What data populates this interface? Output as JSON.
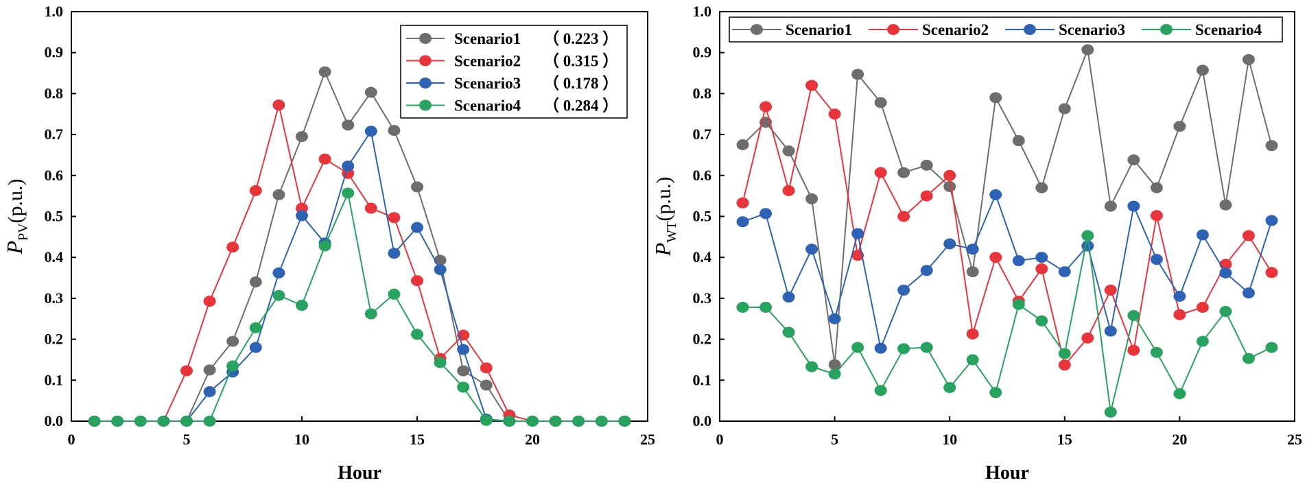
{
  "colors": {
    "s1": "#6d6d6d",
    "s2": "#e8343b",
    "s3": "#2e62b4",
    "s4": "#27a25f",
    "axis": "#000000",
    "legend_border": "#000000"
  },
  "chart_data": [
    {
      "type": "line",
      "xlabel": "Hour",
      "ylabel": {
        "main": "P",
        "sub": "PV",
        "unit": "(p.u.)"
      },
      "xlim": [
        0,
        25
      ],
      "ylim": [
        0,
        1.0
      ],
      "xticks": [
        0,
        5,
        10,
        15,
        20,
        25
      ],
      "xtick_labels": [
        "0",
        "5",
        "10",
        "15",
        "20",
        "25"
      ],
      "yticks": [
        0,
        0.1,
        0.2,
        0.3,
        0.4,
        0.5,
        0.6,
        0.7,
        0.8,
        0.9,
        1.0
      ],
      "ytick_labels": [
        "0.0",
        "0.1",
        "0.2",
        "0.3",
        "0.4",
        "0.5",
        "0.6",
        "0.7",
        "0.8",
        "0.9",
        "1.0"
      ],
      "legend_position": "top-right",
      "legend_layout": "vertical",
      "x": [
        1,
        2,
        3,
        4,
        5,
        6,
        7,
        8,
        9,
        10,
        11,
        12,
        13,
        14,
        15,
        16,
        17,
        18,
        19,
        20,
        21,
        22,
        23,
        24
      ],
      "series": [
        {
          "name": "Scenario1",
          "prob": "（ 0.223 ）",
          "color_key": "s1",
          "values": [
            0,
            0,
            0,
            0,
            0,
            0.125,
            0.195,
            0.34,
            0.553,
            0.695,
            0.853,
            0.723,
            0.803,
            0.71,
            0.572,
            0.393,
            0.123,
            0.088,
            0,
            0,
            0,
            0,
            0,
            0
          ]
        },
        {
          "name": "Scenario2",
          "prob": "（ 0.315 ）",
          "color_key": "s2",
          "values": [
            0,
            0,
            0,
            0,
            0.123,
            0.293,
            0.425,
            0.563,
            0.772,
            0.52,
            0.64,
            0.605,
            0.52,
            0.497,
            0.343,
            0.153,
            0.21,
            0.13,
            0.015,
            0,
            0,
            0,
            0,
            0
          ]
        },
        {
          "name": "Scenario3",
          "prob": "（ 0.178 ）",
          "color_key": "s3",
          "values": [
            0,
            0,
            0,
            0,
            0,
            0.072,
            0.12,
            0.18,
            0.362,
            0.502,
            0.435,
            0.623,
            0.708,
            0.41,
            0.473,
            0.37,
            0.175,
            0.005,
            0,
            0,
            0,
            0,
            0,
            0
          ]
        },
        {
          "name": "Scenario4",
          "prob": "（ 0.284 ）",
          "color_key": "s4",
          "values": [
            0,
            0,
            0,
            0,
            0,
            0,
            0.135,
            0.228,
            0.307,
            0.283,
            0.428,
            0.557,
            0.262,
            0.31,
            0.212,
            0.143,
            0.083,
            0.002,
            0,
            0,
            0,
            0,
            0,
            0
          ]
        }
      ]
    },
    {
      "type": "line",
      "xlabel": "Hour",
      "ylabel": {
        "main": "P",
        "sub": "WT",
        "unit": "(p.u.)"
      },
      "xlim": [
        0,
        25
      ],
      "ylim": [
        0,
        1.0
      ],
      "xticks": [
        0,
        5,
        10,
        15,
        20,
        25
      ],
      "xtick_labels": [
        "0",
        "5",
        "10",
        "15",
        "20",
        "25"
      ],
      "yticks": [
        0,
        0.1,
        0.2,
        0.3,
        0.4,
        0.5,
        0.6,
        0.7,
        0.8,
        0.9,
        1.0
      ],
      "ytick_labels": [
        "0.0",
        "0.1",
        "0.2",
        "0.3",
        "0.4",
        "0.5",
        "0.6",
        "0.7",
        "0.8",
        "0.9",
        "1.0"
      ],
      "legend_position": "top",
      "legend_layout": "horizontal",
      "x": [
        1,
        2,
        3,
        4,
        5,
        6,
        7,
        8,
        9,
        10,
        11,
        12,
        13,
        14,
        15,
        16,
        17,
        18,
        19,
        20,
        21,
        22,
        23,
        24
      ],
      "series": [
        {
          "name": "Scenario1",
          "color_key": "s1",
          "values": [
            0.675,
            0.73,
            0.66,
            0.543,
            0.138,
            0.847,
            0.778,
            0.607,
            0.625,
            0.573,
            0.365,
            0.79,
            0.685,
            0.57,
            0.763,
            0.907,
            0.525,
            0.638,
            0.57,
            0.72,
            0.857,
            0.528,
            0.883,
            0.673
          ]
        },
        {
          "name": "Scenario2",
          "color_key": "s2",
          "values": [
            0.533,
            0.768,
            0.563,
            0.82,
            0.75,
            0.405,
            0.607,
            0.5,
            0.55,
            0.6,
            0.213,
            0.4,
            0.293,
            0.372,
            0.137,
            0.203,
            0.32,
            0.173,
            0.502,
            0.26,
            0.278,
            0.383,
            0.453,
            0.363
          ]
        },
        {
          "name": "Scenario3",
          "color_key": "s3",
          "values": [
            0.487,
            0.507,
            0.303,
            0.42,
            0.25,
            0.458,
            0.178,
            0.32,
            0.368,
            0.433,
            0.42,
            0.553,
            0.392,
            0.4,
            0.365,
            0.428,
            0.22,
            0.525,
            0.395,
            0.305,
            0.455,
            0.362,
            0.313,
            0.49
          ]
        },
        {
          "name": "Scenario4",
          "color_key": "s4",
          "values": [
            0.278,
            0.278,
            0.217,
            0.133,
            0.115,
            0.18,
            0.075,
            0.177,
            0.18,
            0.082,
            0.15,
            0.07,
            0.285,
            0.245,
            0.165,
            0.453,
            0.022,
            0.258,
            0.168,
            0.067,
            0.195,
            0.268,
            0.153,
            0.18
          ]
        }
      ]
    }
  ]
}
